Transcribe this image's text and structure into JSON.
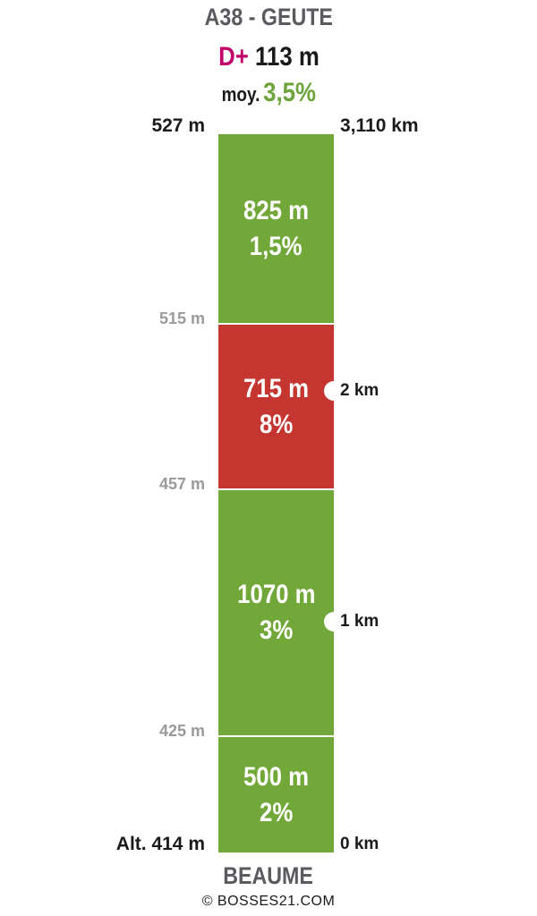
{
  "title": "A38 - GEUTE",
  "climb": {
    "dplus_label": "D+",
    "dplus_value": "113 m",
    "avg_label": "moy.",
    "avg_value": "3,5%"
  },
  "segments": [
    {
      "length": "825 m",
      "grade": "1,5%",
      "color": "#72a83a"
    },
    {
      "length": "715 m",
      "grade": "8%",
      "color": "#c4362f"
    },
    {
      "length": "1070 m",
      "grade": "3%",
      "color": "#72a83a"
    },
    {
      "length": "500 m",
      "grade": "2%",
      "color": "#72a83a"
    }
  ],
  "altitudes": {
    "top": "527 m",
    "a515": "515 m",
    "a457": "457 m",
    "a425": "425 m",
    "bottom": "Alt. 414 m"
  },
  "distances": {
    "top": "3,110 km",
    "km2": "2 km",
    "km1": "1 km",
    "km0": "0 km"
  },
  "start_name": "BEAUME",
  "credit": "© BOSSES21.COM"
}
